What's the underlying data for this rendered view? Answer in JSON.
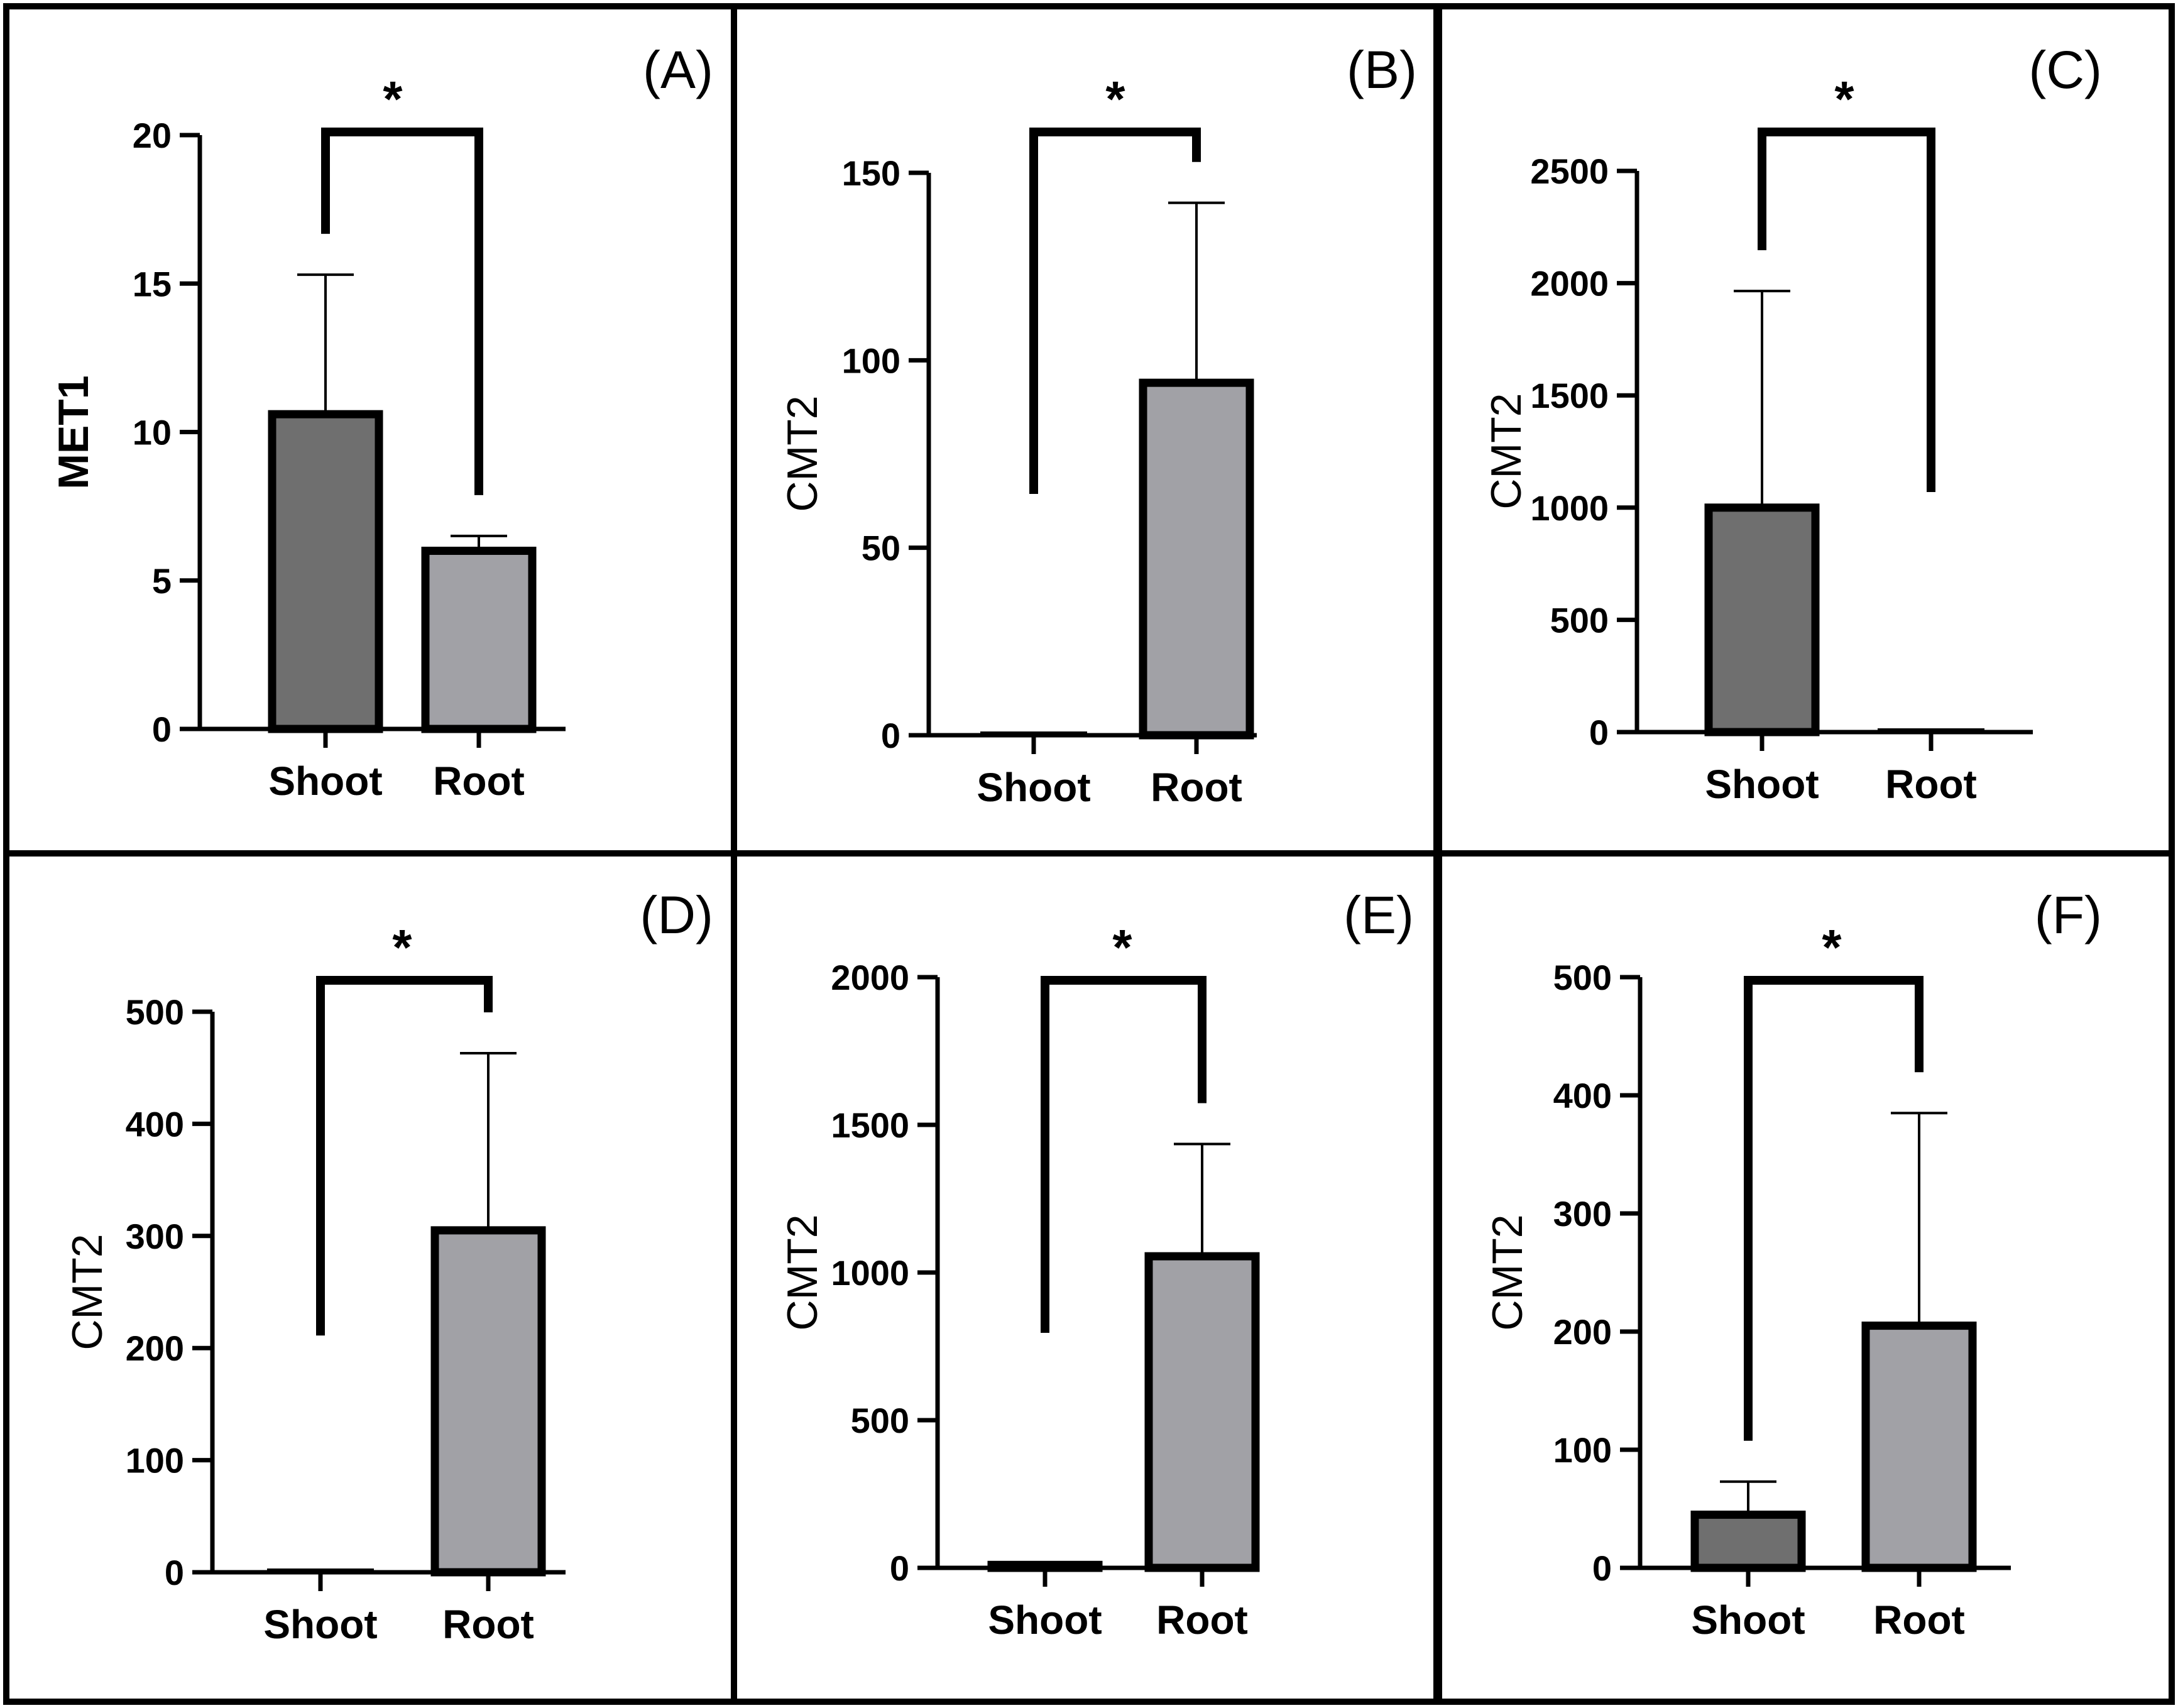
{
  "colors": {
    "shoot_bar": "#6f6f6f",
    "root_bar": "#a1a1a6",
    "ink": "#000000",
    "background": "#ffffff"
  },
  "chart_data": [
    {
      "type": "bar",
      "panel": "(A)",
      "ylabel": "MET1",
      "ylabel_bold": true,
      "categories": [
        "Shoot",
        "Root"
      ],
      "values": [
        10.6,
        6.0
      ],
      "error_upper": [
        15.3,
        6.5
      ],
      "ylim": [
        0,
        20
      ],
      "yticks": [
        0,
        5,
        10,
        15,
        20
      ],
      "significance": "*"
    },
    {
      "type": "bar",
      "panel": "(B)",
      "ylabel": "CMT2",
      "ylabel_bold": false,
      "categories": [
        "Shoot",
        "Root"
      ],
      "values": [
        0,
        94
      ],
      "error_upper": [
        0,
        142
      ],
      "ylim": [
        0,
        150
      ],
      "yticks": [
        0,
        50,
        100,
        150
      ],
      "significance": "*"
    },
    {
      "type": "bar",
      "panel": "(C)",
      "ylabel": "CMT2",
      "ylabel_bold": false,
      "categories": [
        "Shoot",
        "Root"
      ],
      "values": [
        1000,
        0
      ],
      "error_upper": [
        1965,
        0
      ],
      "ylim": [
        0,
        2500
      ],
      "yticks": [
        0,
        500,
        1000,
        1500,
        2000,
        2500
      ],
      "significance": "*"
    },
    {
      "type": "bar",
      "panel": "(D)",
      "ylabel": "CMT2",
      "ylabel_bold": false,
      "categories": [
        "Shoot",
        "Root"
      ],
      "values": [
        0,
        305
      ],
      "error_upper": [
        0,
        463
      ],
      "ylim": [
        0,
        500
      ],
      "yticks": [
        0,
        100,
        200,
        300,
        400,
        500
      ],
      "significance": "*"
    },
    {
      "type": "bar",
      "panel": "(E)",
      "ylabel": "CMT2",
      "ylabel_bold": false,
      "categories": [
        "Shoot",
        "Root"
      ],
      "values": [
        10,
        1055
      ],
      "error_upper": [
        15,
        1435
      ],
      "ylim": [
        0,
        2000
      ],
      "yticks": [
        0,
        500,
        1000,
        1500,
        2000
      ],
      "significance": "*"
    },
    {
      "type": "bar",
      "panel": "(F)",
      "ylabel": "CMT2",
      "ylabel_bold": false,
      "categories": [
        "Shoot",
        "Root"
      ],
      "values": [
        45,
        205
      ],
      "error_upper": [
        73,
        385
      ],
      "ylim": [
        0,
        500
      ],
      "yticks": [
        0,
        100,
        200,
        300,
        400,
        500
      ],
      "significance": "*"
    }
  ]
}
